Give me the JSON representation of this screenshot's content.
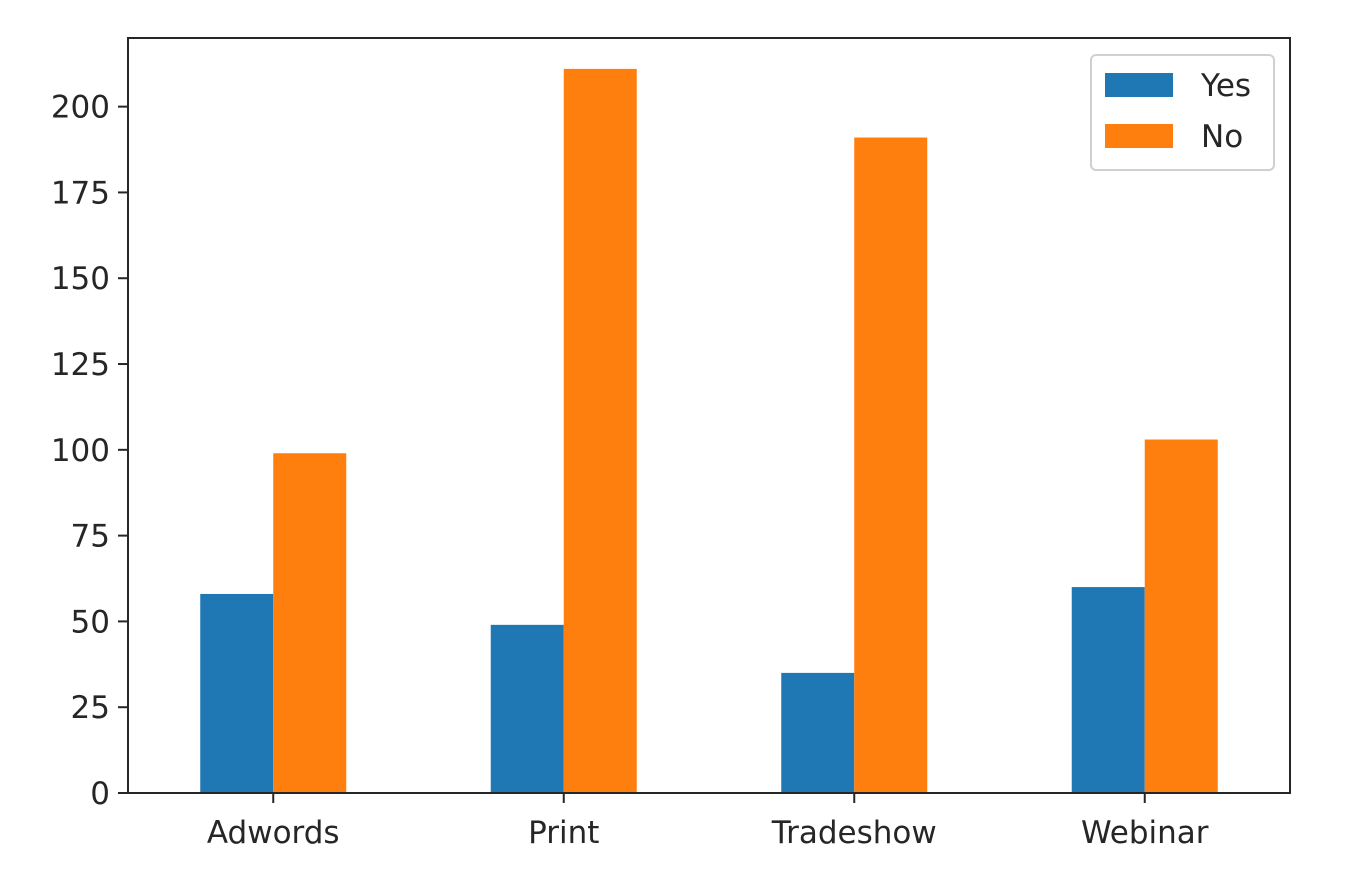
{
  "chart_data": {
    "type": "bar",
    "title": "",
    "xlabel": "",
    "ylabel": "",
    "categories": [
      "Adwords",
      "Print",
      "Tradeshow",
      "Webinar"
    ],
    "series": [
      {
        "name": "Yes",
        "color": "#1f77b4",
        "values": [
          58,
          49,
          35,
          60
        ]
      },
      {
        "name": "No",
        "color": "#ff7f0e",
        "values": [
          99,
          211,
          191,
          103
        ]
      }
    ],
    "ylim": [
      0,
      220
    ],
    "yticks": [
      0,
      25,
      50,
      75,
      100,
      125,
      150,
      175,
      200
    ],
    "grid": false,
    "legend_position": "top-right"
  }
}
